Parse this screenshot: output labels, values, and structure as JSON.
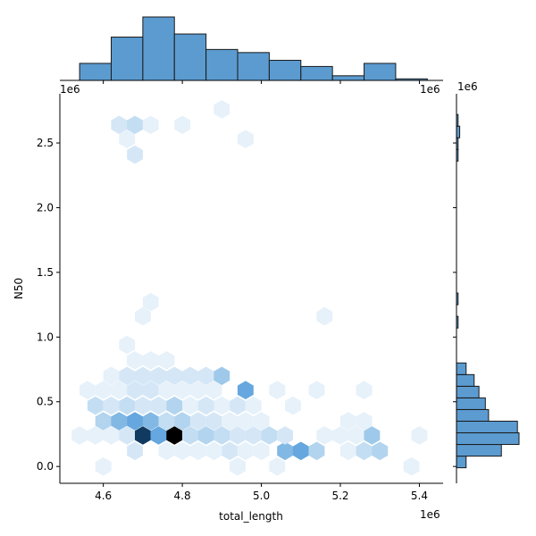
{
  "chart_data": {
    "type": "heatmap",
    "subtype": "hexbin-jointplot",
    "xlabel": "total_length",
    "ylabel": "N50",
    "x_offset_label": "1e6",
    "y_offset_label": "1e6",
    "marginal_x_offset_label": "1e6",
    "marginal_y_offset_label": "1e6",
    "xlim": [
      4.49,
      5.46
    ],
    "ylim": [
      -0.13,
      2.88
    ],
    "x_ticks": [
      4.6,
      4.8,
      5.0,
      5.2,
      5.4
    ],
    "x_tick_labels": [
      "4.6",
      "4.8",
      "5.0",
      "5.2",
      "5.4"
    ],
    "y_ticks": [
      0.0,
      0.5,
      1.0,
      1.5,
      2.0,
      2.5
    ],
    "y_tick_labels": [
      "0.0",
      "0.5",
      "1.0",
      "1.5",
      "2.0",
      "2.5"
    ],
    "colors": {
      "bar_fill": "#5b9bd0",
      "bar_edge": "#1a1a1a",
      "hex_min": "#e6f1fa",
      "hex_max": "#000000"
    },
    "hexbins": [
      {
        "x": 4.6,
        "y": 0.0,
        "n": 1
      },
      {
        "x": 5.04,
        "y": 0.0,
        "n": 1
      },
      {
        "x": 5.38,
        "y": 0.0,
        "n": 1
      },
      {
        "x": 4.94,
        "y": 0.0,
        "n": 1
      },
      {
        "x": 4.68,
        "y": 0.12,
        "n": 2
      },
      {
        "x": 4.76,
        "y": 0.12,
        "n": 1
      },
      {
        "x": 4.8,
        "y": 0.12,
        "n": 1
      },
      {
        "x": 4.84,
        "y": 0.12,
        "n": 1
      },
      {
        "x": 4.88,
        "y": 0.12,
        "n": 1
      },
      {
        "x": 4.92,
        "y": 0.12,
        "n": 2
      },
      {
        "x": 4.96,
        "y": 0.12,
        "n": 1
      },
      {
        "x": 5.0,
        "y": 0.12,
        "n": 1
      },
      {
        "x": 5.06,
        "y": 0.12,
        "n": 6
      },
      {
        "x": 5.1,
        "y": 0.12,
        "n": 7
      },
      {
        "x": 5.14,
        "y": 0.12,
        "n": 4
      },
      {
        "x": 5.22,
        "y": 0.12,
        "n": 1
      },
      {
        "x": 5.26,
        "y": 0.12,
        "n": 3
      },
      {
        "x": 5.3,
        "y": 0.12,
        "n": 4
      },
      {
        "x": 4.54,
        "y": 0.24,
        "n": 1
      },
      {
        "x": 4.58,
        "y": 0.24,
        "n": 1
      },
      {
        "x": 4.62,
        "y": 0.24,
        "n": 1
      },
      {
        "x": 4.66,
        "y": 0.24,
        "n": 2
      },
      {
        "x": 4.7,
        "y": 0.24,
        "n": 13
      },
      {
        "x": 4.74,
        "y": 0.24,
        "n": 7
      },
      {
        "x": 4.78,
        "y": 0.24,
        "n": 16
      },
      {
        "x": 4.82,
        "y": 0.24,
        "n": 3
      },
      {
        "x": 4.86,
        "y": 0.24,
        "n": 4
      },
      {
        "x": 4.9,
        "y": 0.24,
        "n": 3
      },
      {
        "x": 4.94,
        "y": 0.24,
        "n": 2
      },
      {
        "x": 4.98,
        "y": 0.24,
        "n": 2
      },
      {
        "x": 5.02,
        "y": 0.24,
        "n": 3
      },
      {
        "x": 5.06,
        "y": 0.24,
        "n": 2
      },
      {
        "x": 5.16,
        "y": 0.24,
        "n": 1
      },
      {
        "x": 5.2,
        "y": 0.24,
        "n": 1
      },
      {
        "x": 5.24,
        "y": 0.24,
        "n": 1
      },
      {
        "x": 5.28,
        "y": 0.24,
        "n": 5
      },
      {
        "x": 5.4,
        "y": 0.24,
        "n": 1
      },
      {
        "x": 4.6,
        "y": 0.35,
        "n": 4
      },
      {
        "x": 4.64,
        "y": 0.35,
        "n": 6
      },
      {
        "x": 4.68,
        "y": 0.35,
        "n": 7
      },
      {
        "x": 4.72,
        "y": 0.35,
        "n": 6
      },
      {
        "x": 4.76,
        "y": 0.35,
        "n": 3
      },
      {
        "x": 4.8,
        "y": 0.35,
        "n": 4
      },
      {
        "x": 4.84,
        "y": 0.35,
        "n": 2
      },
      {
        "x": 4.88,
        "y": 0.35,
        "n": 2
      },
      {
        "x": 4.92,
        "y": 0.35,
        "n": 1
      },
      {
        "x": 4.96,
        "y": 0.35,
        "n": 1
      },
      {
        "x": 5.0,
        "y": 0.35,
        "n": 1
      },
      {
        "x": 5.22,
        "y": 0.35,
        "n": 1
      },
      {
        "x": 5.26,
        "y": 0.35,
        "n": 1
      },
      {
        "x": 4.58,
        "y": 0.47,
        "n": 3
      },
      {
        "x": 4.62,
        "y": 0.47,
        "n": 2
      },
      {
        "x": 4.66,
        "y": 0.47,
        "n": 3
      },
      {
        "x": 4.7,
        "y": 0.47,
        "n": 2
      },
      {
        "x": 4.74,
        "y": 0.47,
        "n": 2
      },
      {
        "x": 4.78,
        "y": 0.47,
        "n": 4
      },
      {
        "x": 4.82,
        "y": 0.47,
        "n": 1
      },
      {
        "x": 4.86,
        "y": 0.47,
        "n": 2
      },
      {
        "x": 4.9,
        "y": 0.47,
        "n": 1
      },
      {
        "x": 4.94,
        "y": 0.47,
        "n": 2
      },
      {
        "x": 4.98,
        "y": 0.47,
        "n": 1
      },
      {
        "x": 5.08,
        "y": 0.47,
        "n": 1
      },
      {
        "x": 4.56,
        "y": 0.59,
        "n": 1
      },
      {
        "x": 4.6,
        "y": 0.59,
        "n": 1
      },
      {
        "x": 4.64,
        "y": 0.59,
        "n": 1
      },
      {
        "x": 4.68,
        "y": 0.59,
        "n": 2
      },
      {
        "x": 4.72,
        "y": 0.59,
        "n": 2
      },
      {
        "x": 4.76,
        "y": 0.59,
        "n": 1
      },
      {
        "x": 4.8,
        "y": 0.59,
        "n": 1
      },
      {
        "x": 4.84,
        "y": 0.59,
        "n": 1
      },
      {
        "x": 4.88,
        "y": 0.59,
        "n": 1
      },
      {
        "x": 4.96,
        "y": 0.59,
        "n": 7
      },
      {
        "x": 5.04,
        "y": 0.59,
        "n": 1
      },
      {
        "x": 5.14,
        "y": 0.59,
        "n": 1
      },
      {
        "x": 5.26,
        "y": 0.59,
        "n": 1
      },
      {
        "x": 4.62,
        "y": 0.7,
        "n": 1
      },
      {
        "x": 4.66,
        "y": 0.7,
        "n": 2
      },
      {
        "x": 4.7,
        "y": 0.7,
        "n": 2
      },
      {
        "x": 4.74,
        "y": 0.7,
        "n": 2
      },
      {
        "x": 4.78,
        "y": 0.7,
        "n": 2
      },
      {
        "x": 4.82,
        "y": 0.7,
        "n": 2
      },
      {
        "x": 4.86,
        "y": 0.7,
        "n": 2
      },
      {
        "x": 4.9,
        "y": 0.7,
        "n": 5
      },
      {
        "x": 4.68,
        "y": 0.82,
        "n": 1
      },
      {
        "x": 4.72,
        "y": 0.82,
        "n": 1
      },
      {
        "x": 4.76,
        "y": 0.82,
        "n": 1
      },
      {
        "x": 4.66,
        "y": 0.94,
        "n": 1
      },
      {
        "x": 4.7,
        "y": 1.16,
        "n": 1
      },
      {
        "x": 5.16,
        "y": 1.16,
        "n": 1
      },
      {
        "x": 4.72,
        "y": 1.27,
        "n": 1
      },
      {
        "x": 4.68,
        "y": 2.41,
        "n": 2
      },
      {
        "x": 4.66,
        "y": 2.53,
        "n": 1
      },
      {
        "x": 4.96,
        "y": 2.53,
        "n": 1
      },
      {
        "x": 4.64,
        "y": 2.64,
        "n": 2
      },
      {
        "x": 4.68,
        "y": 2.64,
        "n": 3
      },
      {
        "x": 4.72,
        "y": 2.64,
        "n": 1
      },
      {
        "x": 4.8,
        "y": 2.64,
        "n": 1
      },
      {
        "x": 4.9,
        "y": 2.76,
        "n": 1
      }
    ],
    "marginal_x": {
      "bin_edges": [
        4.54,
        4.62,
        4.7,
        4.78,
        4.86,
        4.94,
        5.02,
        5.1,
        5.18,
        5.26,
        5.34,
        5.42
      ],
      "counts": [
        11,
        28,
        41,
        30,
        20,
        18,
        13,
        9,
        3,
        11,
        1
      ]
    },
    "marginal_y": {
      "bin_edges": [
        -0.01,
        0.08,
        0.17,
        0.26,
        0.35,
        0.44,
        0.53,
        0.62,
        0.71,
        0.8,
        0.89,
        0.98,
        1.07,
        1.16,
        1.25,
        1.34,
        2.36,
        2.45,
        2.54,
        2.63,
        2.72
      ],
      "counts": [
        6,
        28,
        39,
        38,
        20,
        18,
        14,
        11,
        6,
        0,
        0,
        0,
        1,
        0,
        1,
        0,
        1,
        1,
        2,
        1
      ]
    }
  }
}
